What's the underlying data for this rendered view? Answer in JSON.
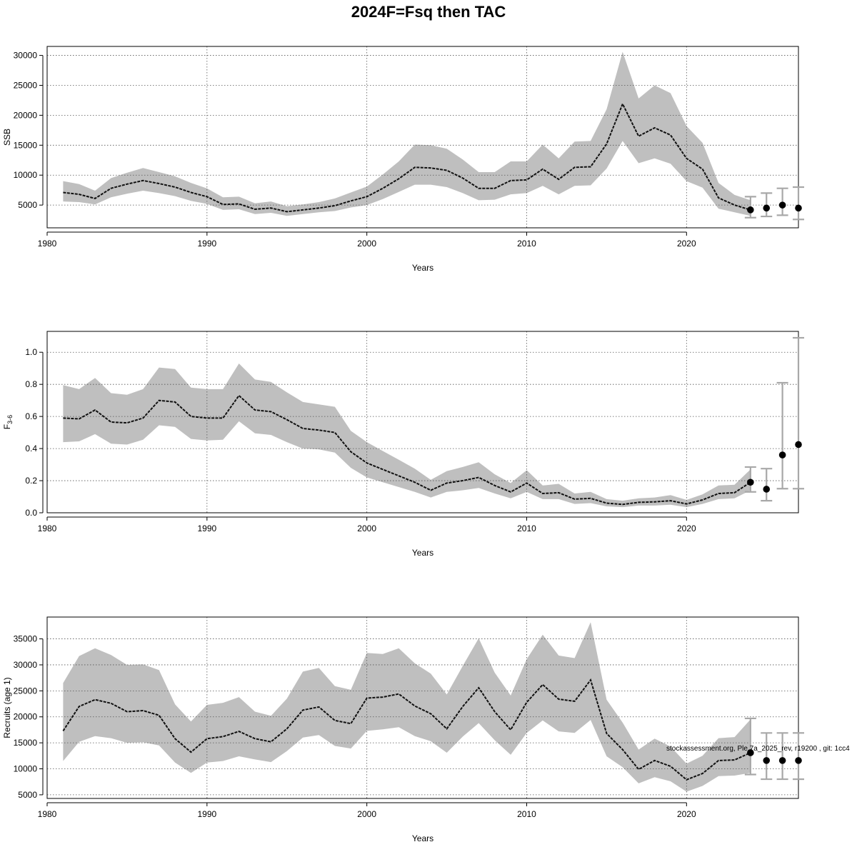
{
  "title": "2024F=Fsq then TAC",
  "footnote": "stockassessment.org, Ple.7a_2025_rev, r19200 , git: 1cc4",
  "chart_data": [
    {
      "type": "line",
      "ylabel": "SSB",
      "xlabel": "Years",
      "xlim": [
        1980,
        2027
      ],
      "ylim": [
        1200,
        31500
      ],
      "xticks": [
        1980,
        1990,
        2000,
        2010,
        2020
      ],
      "yticks": [
        5000,
        10000,
        15000,
        20000,
        25000,
        30000
      ],
      "grid": true,
      "band_color": "#bfbfbf",
      "series": [
        {
          "x": [
            1981,
            1982,
            1983,
            1984,
            1985,
            1986,
            1987,
            1988,
            1989,
            1990,
            1991,
            1992,
            1993,
            1994,
            1995,
            1996,
            1997,
            1998,
            1999,
            2000,
            2001,
            2002,
            2003,
            2004,
            2005,
            2006,
            2007,
            2008,
            2009,
            2010,
            2011,
            2012,
            2013,
            2014,
            2015,
            2016,
            2017,
            2018,
            2019,
            2020,
            2021,
            2022,
            2023,
            2024
          ],
          "values": [
            7100,
            6800,
            6100,
            7800,
            8500,
            9100,
            8600,
            8000,
            7100,
            6400,
            5100,
            5200,
            4300,
            4500,
            3900,
            4200,
            4500,
            4900,
            5700,
            6400,
            7800,
            9400,
            11300,
            11200,
            10800,
            9500,
            7800,
            7800,
            9100,
            9200,
            11000,
            9300,
            11300,
            11400,
            15200,
            21900,
            16500,
            17900,
            16700,
            12800,
            11000,
            6200,
            5000,
            4200
          ],
          "lower": [
            5600,
            5500,
            5100,
            6300,
            6900,
            7400,
            7000,
            6500,
            5700,
            5200,
            4200,
            4300,
            3500,
            3700,
            3200,
            3500,
            3800,
            4000,
            4600,
            5000,
            6000,
            7200,
            8400,
            8400,
            8000,
            7000,
            5800,
            5900,
            6800,
            7000,
            8200,
            6800,
            8200,
            8300,
            11100,
            15700,
            12000,
            12800,
            11900,
            9000,
            7900,
            4400,
            3800,
            3200
          ],
          "upper": [
            9000,
            8500,
            7400,
            9500,
            10400,
            11200,
            10500,
            9800,
            8700,
            7800,
            6300,
            6400,
            5300,
            5600,
            4800,
            5100,
            5500,
            6100,
            7100,
            8100,
            10100,
            12300,
            15100,
            15000,
            14400,
            12600,
            10500,
            10500,
            12300,
            12300,
            15100,
            12800,
            15600,
            15700,
            21000,
            30600,
            22800,
            25000,
            23700,
            18200,
            15400,
            8700,
            6700,
            5800
          ]
        }
      ],
      "forecast": {
        "x": [
          2024,
          2025,
          2026,
          2027
        ],
        "values": [
          4200,
          4500,
          5000,
          4500
        ],
        "lower": [
          2900,
          3100,
          3300,
          2600
        ],
        "upper": [
          6400,
          7000,
          7800,
          8000
        ]
      }
    },
    {
      "type": "line",
      "ylabel": "F3-6",
      "ylabel_main": "F",
      "ylabel_sub": "3-6",
      "xlabel": "Years",
      "xlim": [
        1980,
        2027
      ],
      "ylim": [
        0.0,
        1.13
      ],
      "xticks": [
        1980,
        1990,
        2000,
        2010,
        2020
      ],
      "yticks": [
        0.0,
        0.2,
        0.4,
        0.6,
        0.8,
        1.0
      ],
      "grid": true,
      "band_color": "#bfbfbf",
      "series": [
        {
          "x": [
            1981,
            1982,
            1983,
            1984,
            1985,
            1986,
            1987,
            1988,
            1989,
            1990,
            1991,
            1992,
            1993,
            1994,
            1995,
            1996,
            1997,
            1998,
            1999,
            2000,
            2001,
            2002,
            2003,
            2004,
            2005,
            2006,
            2007,
            2008,
            2009,
            2010,
            2011,
            2012,
            2013,
            2014,
            2015,
            2016,
            2017,
            2018,
            2019,
            2020,
            2021,
            2022,
            2023,
            2024
          ],
          "values": [
            0.59,
            0.585,
            0.64,
            0.565,
            0.56,
            0.59,
            0.7,
            0.69,
            0.6,
            0.59,
            0.59,
            0.73,
            0.64,
            0.63,
            0.58,
            0.525,
            0.515,
            0.5,
            0.38,
            0.31,
            0.27,
            0.23,
            0.19,
            0.14,
            0.185,
            0.2,
            0.22,
            0.17,
            0.13,
            0.185,
            0.12,
            0.125,
            0.085,
            0.09,
            0.06,
            0.052,
            0.065,
            0.068,
            0.075,
            0.055,
            0.08,
            0.12,
            0.125,
            0.19
          ],
          "lower": [
            0.44,
            0.445,
            0.49,
            0.43,
            0.425,
            0.455,
            0.545,
            0.535,
            0.46,
            0.45,
            0.455,
            0.57,
            0.495,
            0.485,
            0.44,
            0.4,
            0.395,
            0.375,
            0.28,
            0.22,
            0.19,
            0.16,
            0.13,
            0.095,
            0.13,
            0.14,
            0.155,
            0.12,
            0.09,
            0.13,
            0.085,
            0.085,
            0.055,
            0.06,
            0.04,
            0.035,
            0.045,
            0.045,
            0.05,
            0.035,
            0.055,
            0.085,
            0.09,
            0.14
          ],
          "upper": [
            0.795,
            0.77,
            0.84,
            0.745,
            0.735,
            0.77,
            0.905,
            0.895,
            0.78,
            0.77,
            0.77,
            0.93,
            0.83,
            0.815,
            0.75,
            0.69,
            0.675,
            0.66,
            0.51,
            0.44,
            0.385,
            0.33,
            0.275,
            0.205,
            0.26,
            0.285,
            0.315,
            0.24,
            0.185,
            0.265,
            0.17,
            0.18,
            0.12,
            0.13,
            0.085,
            0.075,
            0.09,
            0.095,
            0.11,
            0.08,
            0.115,
            0.17,
            0.175,
            0.27
          ]
        }
      ],
      "forecast": {
        "x": [
          2024,
          2025,
          2026,
          2027
        ],
        "values": [
          0.19,
          0.147,
          0.36,
          0.425
        ],
        "lower": [
          0.13,
          0.075,
          0.15,
          0.15
        ],
        "upper": [
          0.285,
          0.275,
          0.81,
          1.09
        ]
      }
    },
    {
      "type": "line",
      "ylabel": "Recruits (age 1)",
      "xlabel": "Years",
      "xlim": [
        1980,
        2027
      ],
      "ylim": [
        4300,
        39200
      ],
      "xticks": [
        1980,
        1990,
        2000,
        2010,
        2020
      ],
      "yticks": [
        5000,
        10000,
        15000,
        20000,
        25000,
        30000,
        35000
      ],
      "grid": true,
      "band_color": "#bfbfbf",
      "series": [
        {
          "x": [
            1981,
            1982,
            1983,
            1984,
            1985,
            1986,
            1987,
            1988,
            1989,
            1990,
            1991,
            1992,
            1993,
            1994,
            1995,
            1996,
            1997,
            1998,
            1999,
            2000,
            2001,
            2002,
            2003,
            2004,
            2005,
            2006,
            2007,
            2008,
            2009,
            2010,
            2011,
            2012,
            2013,
            2014,
            2015,
            2016,
            2017,
            2018,
            2019,
            2020,
            2021,
            2022,
            2023,
            2024
          ],
          "values": [
            17300,
            22000,
            23300,
            22600,
            21000,
            21200,
            20300,
            15800,
            13200,
            15800,
            16200,
            17200,
            15800,
            15200,
            17700,
            21300,
            21900,
            19300,
            18700,
            23600,
            23800,
            24400,
            22100,
            20600,
            17700,
            22000,
            25600,
            21000,
            17500,
            22800,
            26200,
            23400,
            23000,
            27100,
            16800,
            13700,
            9900,
            11600,
            10500,
            7900,
            9100,
            11600,
            11700,
            13100
          ],
          "lower": [
            11500,
            15200,
            16300,
            15900,
            15000,
            15100,
            14500,
            11200,
            9200,
            11200,
            11500,
            12400,
            11800,
            11300,
            13400,
            16000,
            16500,
            14400,
            13900,
            17300,
            17600,
            18000,
            16300,
            15300,
            13100,
            16200,
            18800,
            15500,
            12700,
            16900,
            19300,
            17200,
            16900,
            19400,
            12400,
            10300,
            7200,
            8400,
            7600,
            5600,
            6700,
            8600,
            8700,
            9200
          ],
          "upper": [
            26500,
            31700,
            33200,
            31900,
            30000,
            30100,
            29000,
            22400,
            19100,
            22300,
            22700,
            23800,
            21000,
            20200,
            23500,
            28700,
            29400,
            25900,
            25200,
            32300,
            32100,
            33200,
            30300,
            28300,
            24300,
            29800,
            35100,
            28500,
            24100,
            31100,
            35800,
            31800,
            31300,
            38200,
            23300,
            18900,
            13700,
            15800,
            14300,
            11000,
            12500,
            15900,
            16100,
            19500
          ]
        }
      ],
      "forecast": {
        "x": [
          2024,
          2025,
          2026,
          2027
        ],
        "values": [
          13100,
          11600,
          11600,
          11600
        ],
        "lower": [
          8900,
          8000,
          8000,
          8000
        ],
        "upper": [
          19700,
          16900,
          16900,
          16900
        ]
      }
    }
  ]
}
